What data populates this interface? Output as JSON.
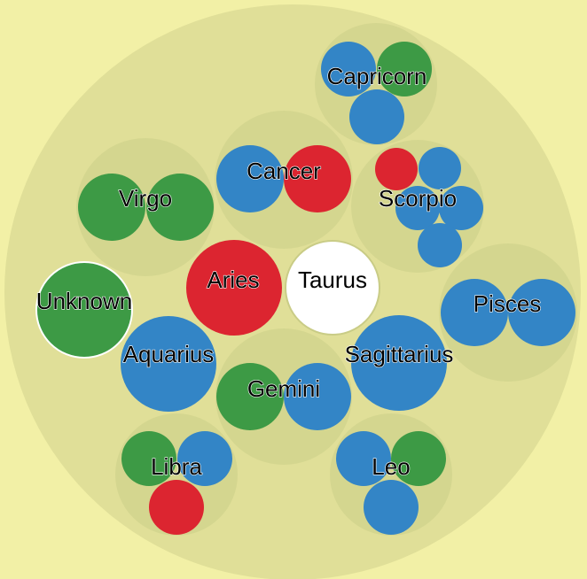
{
  "colors": {
    "background": "#f2f0a6",
    "outer_circle": "#e0df98",
    "group_circle": "#d4d68f",
    "blue": "#3385c6",
    "green": "#3d9a45",
    "red": "#dc2530",
    "white": "#ffffff",
    "outline": "#c9cc86"
  },
  "groups": [
    {
      "key": "capricorn",
      "label": "Capricorn",
      "members": [
        "blue",
        "green",
        "blue"
      ]
    },
    {
      "key": "cancer",
      "label": "Cancer",
      "members": [
        "blue",
        "red"
      ]
    },
    {
      "key": "scorpio",
      "label": "Scorpio",
      "members": [
        "red",
        "blue",
        "blue",
        "blue",
        "blue"
      ]
    },
    {
      "key": "virgo",
      "label": "Virgo",
      "members": [
        "green",
        "green"
      ]
    },
    {
      "key": "aries",
      "label": "Aries",
      "members": [
        "red"
      ]
    },
    {
      "key": "taurus",
      "label": "Taurus",
      "members": [
        "white"
      ]
    },
    {
      "key": "unknown",
      "label": "Unknown",
      "members": [
        "green"
      ]
    },
    {
      "key": "pisces",
      "label": "Pisces",
      "members": [
        "blue",
        "blue"
      ]
    },
    {
      "key": "aquarius",
      "label": "Aquarius",
      "members": [
        "blue"
      ]
    },
    {
      "key": "sagittarius",
      "label": "Sagittarius",
      "members": [
        "blue"
      ]
    },
    {
      "key": "gemini",
      "label": "Gemini",
      "members": [
        "green",
        "blue"
      ]
    },
    {
      "key": "libra",
      "label": "Libra",
      "members": [
        "green",
        "blue",
        "red"
      ]
    },
    {
      "key": "leo",
      "label": "Leo",
      "members": [
        "blue",
        "green",
        "blue"
      ]
    }
  ]
}
